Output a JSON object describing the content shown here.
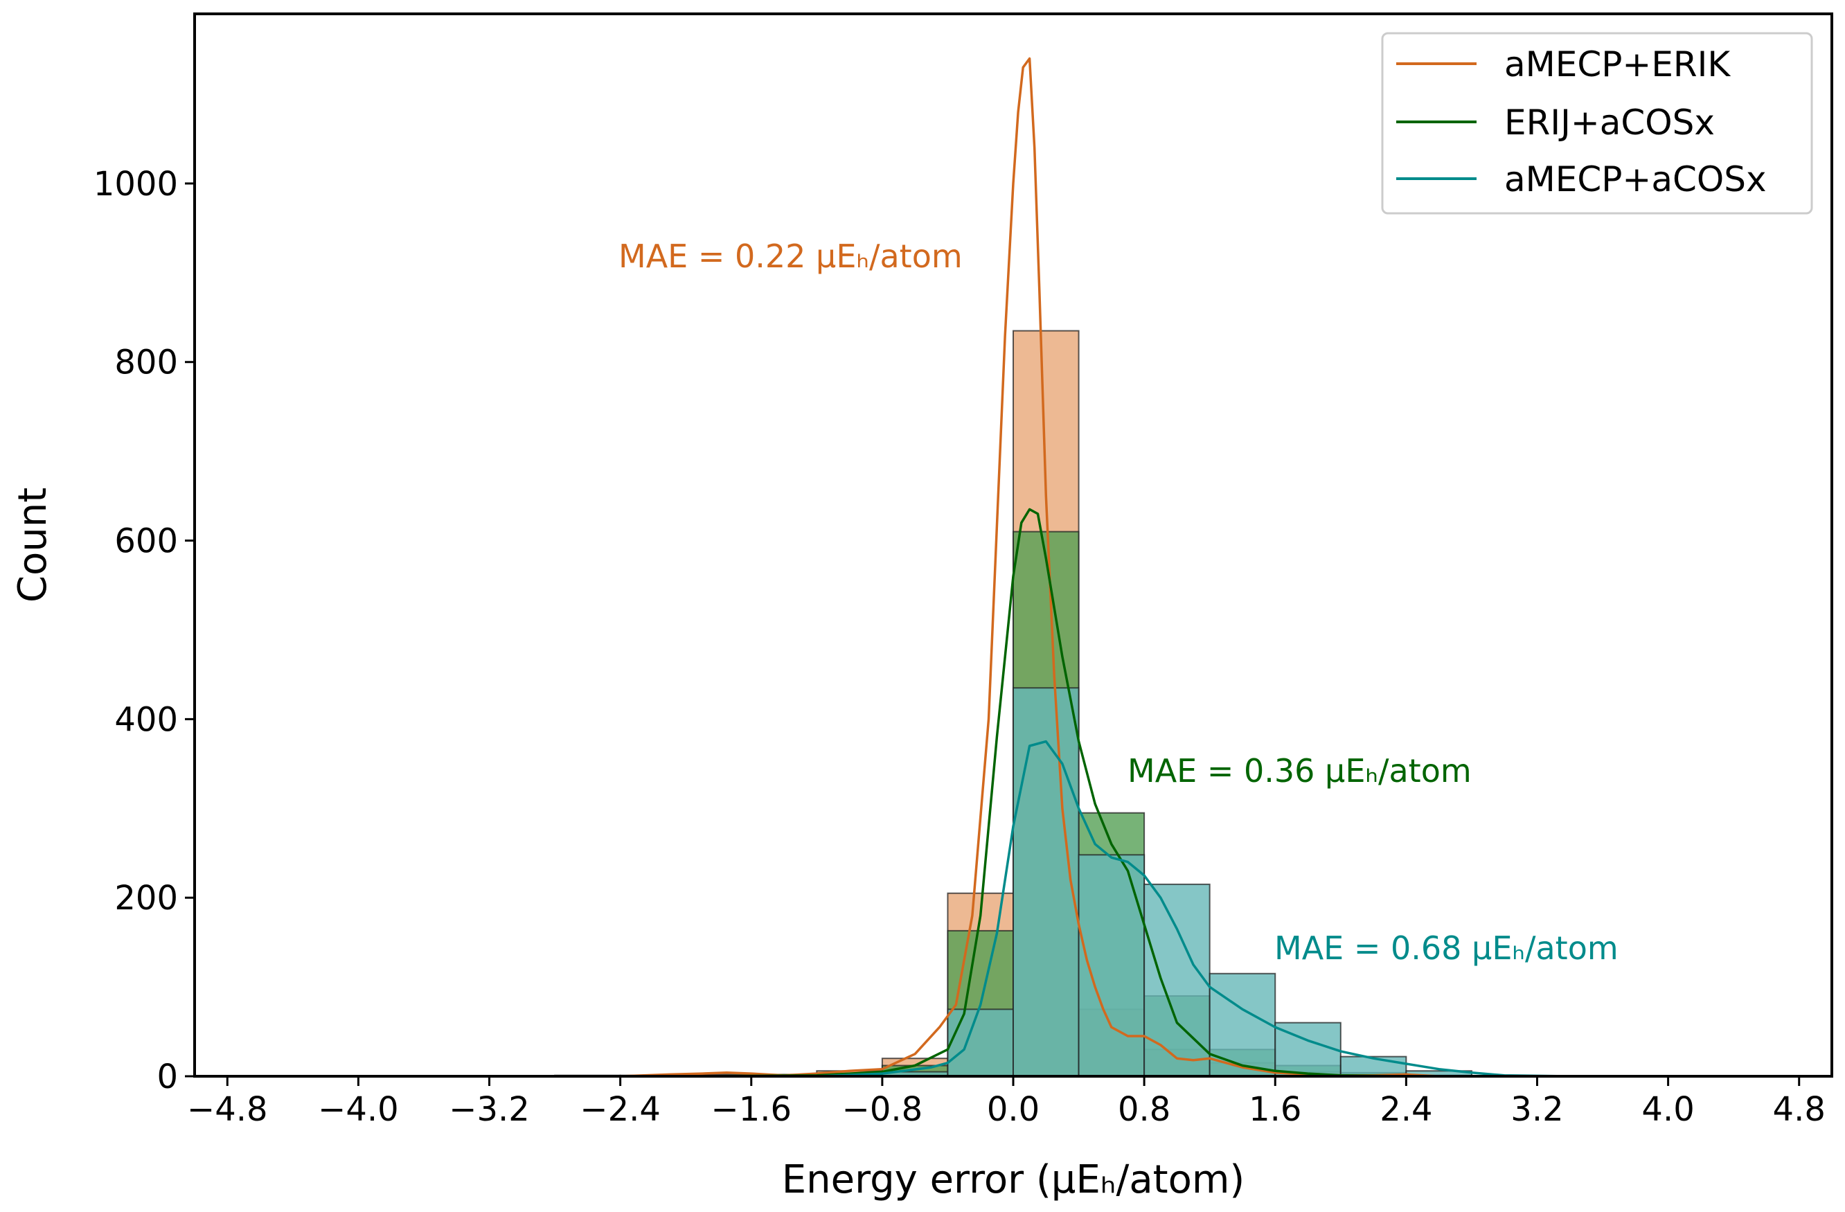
{
  "chart_data": {
    "type": "histogram",
    "xlabel": "Energy error (μEₕ/atom)",
    "ylabel": "Count",
    "xlim": [
      -5.0,
      5.0
    ],
    "ylim": [
      0,
      1190
    ],
    "xticks": [
      -4.8,
      -4.0,
      -3.2,
      -2.4,
      -1.6,
      -0.8,
      0.0,
      0.8,
      1.6,
      2.4,
      3.2,
      4.0,
      4.8
    ],
    "xtick_labels": [
      "−4.8",
      "−4.0",
      "−3.2",
      "−2.4",
      "−1.6",
      "−0.8",
      "0.0",
      "0.8",
      "1.6",
      "2.4",
      "3.2",
      "4.0",
      "4.8"
    ],
    "yticks": [
      0,
      200,
      400,
      600,
      800,
      1000
    ],
    "ytick_labels": [
      "0",
      "200",
      "400",
      "600",
      "800",
      "1000"
    ],
    "bin_edges": [
      -2.8,
      -2.4,
      -2.0,
      -1.6,
      -1.2,
      -0.8,
      -0.4,
      0.0,
      0.4,
      0.8,
      1.2,
      1.6,
      2.0,
      2.4,
      2.8
    ],
    "series": [
      {
        "name": "aMECP+ERIK",
        "line_color": "#d2691e",
        "fill_color": "#e8a878",
        "mae_label": "MAE = 0.22 μEₕ/atom",
        "counts": [
          1,
          1,
          2,
          2,
          6,
          20,
          205,
          835,
          75,
          30,
          15,
          5,
          2,
          1
        ],
        "kde_x": [
          -3.0,
          -2.4,
          -2.1,
          -1.9,
          -1.75,
          -1.6,
          -1.4,
          -1.2,
          -1.0,
          -0.8,
          -0.6,
          -0.45,
          -0.35,
          -0.25,
          -0.15,
          -0.05,
          0.0,
          0.03,
          0.06,
          0.1,
          0.13,
          0.16,
          0.2,
          0.25,
          0.3,
          0.35,
          0.4,
          0.45,
          0.5,
          0.55,
          0.6,
          0.7,
          0.8,
          0.9,
          1.0,
          1.1,
          1.2,
          1.3,
          1.4,
          1.6,
          1.8,
          2.0,
          2.2,
          2.4,
          2.6,
          3.0
        ],
        "kde_y": [
          0,
          0,
          2,
          3,
          4,
          3,
          1,
          3,
          6,
          8,
          25,
          55,
          80,
          180,
          400,
          830,
          1000,
          1080,
          1130,
          1140,
          1040,
          880,
          650,
          450,
          300,
          220,
          170,
          130,
          100,
          75,
          55,
          45,
          45,
          35,
          20,
          18,
          20,
          15,
          10,
          4,
          2,
          1,
          1,
          2,
          0,
          0
        ]
      },
      {
        "name": "ERIJ+aCOSx",
        "line_color": "#006400",
        "fill_color": "#55a055",
        "mae_label": "MAE = 0.36 μEₕ/atom",
        "counts": [
          0,
          0,
          1,
          1,
          2,
          12,
          163,
          610,
          295,
          90,
          30,
          12,
          4,
          1
        ],
        "kde_x": [
          -3.0,
          -2.0,
          -1.2,
          -0.8,
          -0.6,
          -0.4,
          -0.3,
          -0.2,
          -0.1,
          0.0,
          0.05,
          0.1,
          0.15,
          0.2,
          0.3,
          0.4,
          0.5,
          0.6,
          0.7,
          0.8,
          0.9,
          1.0,
          1.2,
          1.4,
          1.6,
          1.8,
          2.0,
          2.4,
          3.0
        ],
        "kde_y": [
          0,
          0,
          1,
          5,
          12,
          30,
          70,
          180,
          380,
          560,
          620,
          635,
          630,
          580,
          470,
          375,
          305,
          260,
          230,
          170,
          110,
          60,
          25,
          12,
          6,
          3,
          1,
          0,
          0
        ]
      },
      {
        "name": "aMECP+aCOSx",
        "line_color": "#008b8b",
        "fill_color": "#66b8b8",
        "mae_label": "MAE = 0.68 μEₕ/atom",
        "counts": [
          0,
          0,
          0,
          0,
          0,
          5,
          75,
          435,
          248,
          215,
          115,
          60,
          22,
          6
        ],
        "kde_x": [
          -3.0,
          -2.0,
          -1.2,
          -0.8,
          -0.5,
          -0.4,
          -0.3,
          -0.2,
          -0.1,
          0.0,
          0.1,
          0.2,
          0.3,
          0.4,
          0.5,
          0.6,
          0.7,
          0.8,
          0.9,
          1.0,
          1.1,
          1.2,
          1.4,
          1.6,
          1.8,
          2.0,
          2.2,
          2.4,
          2.6,
          2.8,
          3.0,
          3.4
        ],
        "kde_y": [
          0,
          0,
          0,
          3,
          10,
          15,
          30,
          80,
          160,
          280,
          370,
          375,
          350,
          300,
          260,
          245,
          240,
          225,
          200,
          165,
          125,
          100,
          75,
          55,
          40,
          28,
          20,
          14,
          8,
          4,
          1,
          0
        ]
      }
    ]
  }
}
